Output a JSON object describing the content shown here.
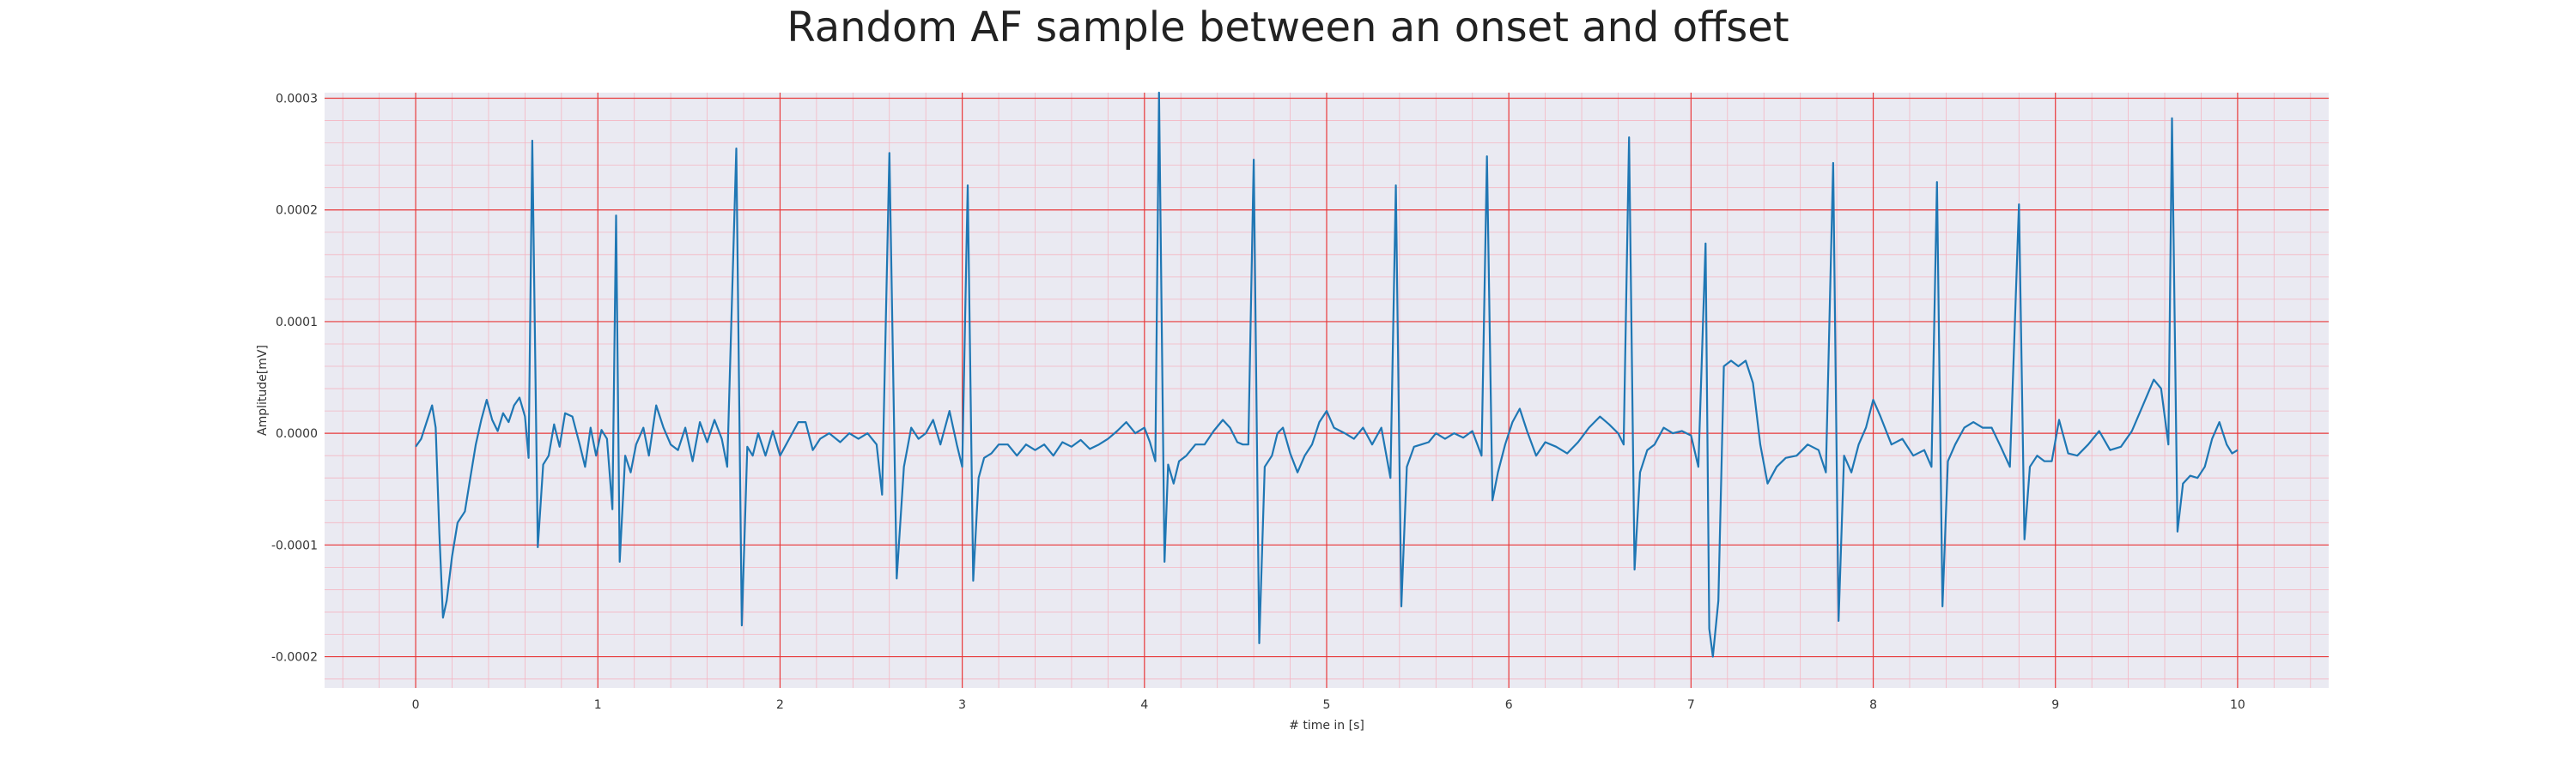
{
  "chart_data": {
    "type": "line",
    "title": "Random AF sample between an onset and offset",
    "xlabel": "# time in [s]",
    "ylabel": "Amplitude[mV]",
    "xlim": [
      -0.5,
      10.5
    ],
    "ylim": [
      -0.000228,
      0.000305
    ],
    "xticks": [
      0,
      1,
      2,
      3,
      4,
      5,
      6,
      7,
      8,
      9,
      10
    ],
    "xtick_labels": [
      "0",
      "1",
      "2",
      "3",
      "4",
      "5",
      "6",
      "7",
      "8",
      "9",
      "10"
    ],
    "yticks": [
      -0.0002,
      -0.0001,
      0.0,
      0.0001,
      0.0002,
      0.0003
    ],
    "ytick_labels": [
      "-0.0002",
      "-0.0001",
      "0.0000",
      "0.0001",
      "0.0002",
      "0.0003"
    ],
    "grid": true,
    "minor_grid": true,
    "colors": {
      "line": "#1f77b4",
      "plot_background": "#eaeaf2",
      "major_grid": "#e8393a",
      "minor_grid": "#f4b6c2"
    },
    "series": [
      {
        "points": [
          [
            0.0,
            -1.2e-05
          ],
          [
            0.03,
            -5e-06
          ],
          [
            0.06,
            1e-05
          ],
          [
            0.09,
            2.5e-05
          ],
          [
            0.11,
            5e-06
          ],
          [
            0.13,
            -9e-05
          ],
          [
            0.15,
            -0.000165
          ],
          [
            0.17,
            -0.00015
          ],
          [
            0.2,
            -0.00011
          ],
          [
            0.23,
            -8e-05
          ],
          [
            0.27,
            -7e-05
          ],
          [
            0.3,
            -4e-05
          ],
          [
            0.33,
            -1e-05
          ],
          [
            0.36,
            1.2e-05
          ],
          [
            0.39,
            3e-05
          ],
          [
            0.42,
            1.2e-05
          ],
          [
            0.45,
            2e-06
          ],
          [
            0.48,
            1.8e-05
          ],
          [
            0.51,
            1e-05
          ],
          [
            0.54,
            2.5e-05
          ],
          [
            0.57,
            3.2e-05
          ],
          [
            0.6,
            1.5e-05
          ],
          [
            0.62,
            -2.2e-05
          ],
          [
            0.64,
            0.000262
          ],
          [
            0.67,
            -0.000102
          ],
          [
            0.7,
            -2.8e-05
          ],
          [
            0.73,
            -2e-05
          ],
          [
            0.76,
            8e-06
          ],
          [
            0.79,
            -1.2e-05
          ],
          [
            0.82,
            1.8e-05
          ],
          [
            0.86,
            1.5e-05
          ],
          [
            0.9,
            -1e-05
          ],
          [
            0.93,
            -3e-05
          ],
          [
            0.96,
            5e-06
          ],
          [
            0.99,
            -2e-05
          ],
          [
            1.02,
            3e-06
          ],
          [
            1.05,
            -5e-06
          ],
          [
            1.08,
            -6.8e-05
          ],
          [
            1.1,
            0.000195
          ],
          [
            1.12,
            -0.000115
          ],
          [
            1.15,
            -2e-05
          ],
          [
            1.18,
            -3.5e-05
          ],
          [
            1.21,
            -1e-05
          ],
          [
            1.25,
            5e-06
          ],
          [
            1.28,
            -2e-05
          ],
          [
            1.32,
            2.5e-05
          ],
          [
            1.36,
            5e-06
          ],
          [
            1.4,
            -1e-05
          ],
          [
            1.44,
            -1.5e-05
          ],
          [
            1.48,
            5e-06
          ],
          [
            1.52,
            -2.5e-05
          ],
          [
            1.56,
            1e-05
          ],
          [
            1.6,
            -8e-06
          ],
          [
            1.64,
            1.2e-05
          ],
          [
            1.68,
            -5e-06
          ],
          [
            1.71,
            -3e-05
          ],
          [
            1.76,
            0.000255
          ],
          [
            1.79,
            -0.000172
          ],
          [
            1.82,
            -1.2e-05
          ],
          [
            1.85,
            -2e-05
          ],
          [
            1.88,
            0.0
          ],
          [
            1.92,
            -2e-05
          ],
          [
            1.96,
            2e-06
          ],
          [
            2.0,
            -2e-05
          ],
          [
            2.05,
            -5e-06
          ],
          [
            2.1,
            1e-05
          ],
          [
            2.14,
            1e-05
          ],
          [
            2.18,
            -1.5e-05
          ],
          [
            2.22,
            -5e-06
          ],
          [
            2.27,
            0.0
          ],
          [
            2.33,
            -8e-06
          ],
          [
            2.38,
            0.0
          ],
          [
            2.43,
            -5e-06
          ],
          [
            2.48,
            0.0
          ],
          [
            2.53,
            -1e-05
          ],
          [
            2.56,
            -5.5e-05
          ],
          [
            2.6,
            0.000251
          ],
          [
            2.64,
            -0.00013
          ],
          [
            2.68,
            -3e-05
          ],
          [
            2.72,
            5e-06
          ],
          [
            2.76,
            -5e-06
          ],
          [
            2.8,
            0.0
          ],
          [
            2.84,
            1.2e-05
          ],
          [
            2.88,
            -1e-05
          ],
          [
            2.93,
            2e-05
          ],
          [
            2.97,
            -1e-05
          ],
          [
            3.0,
            -3e-05
          ],
          [
            3.03,
            0.000222
          ],
          [
            3.06,
            -0.000132
          ],
          [
            3.09,
            -4e-05
          ],
          [
            3.12,
            -2.2e-05
          ],
          [
            3.16,
            -1.8e-05
          ],
          [
            3.2,
            -1e-05
          ],
          [
            3.25,
            -1e-05
          ],
          [
            3.3,
            -2e-05
          ],
          [
            3.35,
            -1e-05
          ],
          [
            3.4,
            -1.5e-05
          ],
          [
            3.45,
            -1e-05
          ],
          [
            3.5,
            -2e-05
          ],
          [
            3.55,
            -8e-06
          ],
          [
            3.6,
            -1.2e-05
          ],
          [
            3.65,
            -6e-06
          ],
          [
            3.7,
            -1.4e-05
          ],
          [
            3.75,
            -1e-05
          ],
          [
            3.8,
            -5e-06
          ],
          [
            3.85,
            2e-06
          ],
          [
            3.9,
            1e-05
          ],
          [
            3.95,
            0.0
          ],
          [
            4.0,
            5e-06
          ],
          [
            4.03,
            -8e-06
          ],
          [
            4.06,
            -2.5e-05
          ],
          [
            4.08,
            0.000305
          ],
          [
            4.11,
            -0.000115
          ],
          [
            4.13,
            -2.8e-05
          ],
          [
            4.16,
            -4.5e-05
          ],
          [
            4.19,
            -2.5e-05
          ],
          [
            4.23,
            -2e-05
          ],
          [
            4.28,
            -1e-05
          ],
          [
            4.33,
            -1e-05
          ],
          [
            4.38,
            2e-06
          ],
          [
            4.43,
            1.2e-05
          ],
          [
            4.47,
            5e-06
          ],
          [
            4.51,
            -8e-06
          ],
          [
            4.54,
            -1e-05
          ],
          [
            4.57,
            -1e-05
          ],
          [
            4.6,
            0.000245
          ],
          [
            4.63,
            -0.000188
          ],
          [
            4.66,
            -3e-05
          ],
          [
            4.7,
            -2e-05
          ],
          [
            4.73,
            0.0
          ],
          [
            4.76,
            5e-06
          ],
          [
            4.8,
            -1.8e-05
          ],
          [
            4.84,
            -3.5e-05
          ],
          [
            4.88,
            -2e-05
          ],
          [
            4.92,
            -1e-05
          ],
          [
            4.96,
            1e-05
          ],
          [
            5.0,
            2e-05
          ],
          [
            5.04,
            5e-06
          ],
          [
            5.1,
            0.0
          ],
          [
            5.15,
            -5e-06
          ],
          [
            5.2,
            5e-06
          ],
          [
            5.25,
            -1e-05
          ],
          [
            5.3,
            5e-06
          ],
          [
            5.35,
            -4e-05
          ],
          [
            5.38,
            0.000222
          ],
          [
            5.41,
            -0.000155
          ],
          [
            5.44,
            -3e-05
          ],
          [
            5.48,
            -1.2e-05
          ],
          [
            5.52,
            -1e-05
          ],
          [
            5.56,
            -8e-06
          ],
          [
            5.6,
            0.0
          ],
          [
            5.65,
            -5e-06
          ],
          [
            5.7,
            0.0
          ],
          [
            5.75,
            -4e-06
          ],
          [
            5.8,
            2e-06
          ],
          [
            5.85,
            -2e-05
          ],
          [
            5.88,
            0.000248
          ],
          [
            5.91,
            -6e-05
          ],
          [
            5.94,
            -3.5e-05
          ],
          [
            5.98,
            -1e-05
          ],
          [
            6.02,
            1e-05
          ],
          [
            6.06,
            2.2e-05
          ],
          [
            6.1,
            2e-06
          ],
          [
            6.15,
            -2e-05
          ],
          [
            6.2,
            -8e-06
          ],
          [
            6.26,
            -1.2e-05
          ],
          [
            6.32,
            -1.8e-05
          ],
          [
            6.38,
            -8e-06
          ],
          [
            6.44,
            5e-06
          ],
          [
            6.5,
            1.5e-05
          ],
          [
            6.55,
            8e-06
          ],
          [
            6.6,
            0.0
          ],
          [
            6.63,
            -1e-05
          ],
          [
            6.66,
            0.000265
          ],
          [
            6.69,
            -0.000122
          ],
          [
            6.72,
            -3.5e-05
          ],
          [
            6.76,
            -1.5e-05
          ],
          [
            6.8,
            -1e-05
          ],
          [
            6.85,
            5e-06
          ],
          [
            6.9,
            0.0
          ],
          [
            6.95,
            2e-06
          ],
          [
            7.0,
            -2e-06
          ],
          [
            7.04,
            -3e-05
          ],
          [
            7.08,
            0.00017
          ],
          [
            7.1,
            -0.000175
          ],
          [
            7.12,
            -0.0002
          ],
          [
            7.15,
            -0.00015
          ],
          [
            7.18,
            6e-05
          ],
          [
            7.22,
            6.5e-05
          ],
          [
            7.26,
            6e-05
          ],
          [
            7.3,
            6.5e-05
          ],
          [
            7.34,
            4.5e-05
          ],
          [
            7.38,
            -1e-05
          ],
          [
            7.42,
            -4.5e-05
          ],
          [
            7.47,
            -3e-05
          ],
          [
            7.52,
            -2.2e-05
          ],
          [
            7.58,
            -2e-05
          ],
          [
            7.64,
            -1e-05
          ],
          [
            7.7,
            -1.5e-05
          ],
          [
            7.74,
            -3.5e-05
          ],
          [
            7.78,
            0.000242
          ],
          [
            7.81,
            -0.000168
          ],
          [
            7.84,
            -2e-05
          ],
          [
            7.88,
            -3.5e-05
          ],
          [
            7.92,
            -1e-05
          ],
          [
            7.96,
            5e-06
          ],
          [
            8.0,
            3e-05
          ],
          [
            8.04,
            1.5e-05
          ],
          [
            8.1,
            -1e-05
          ],
          [
            8.16,
            -5e-06
          ],
          [
            8.22,
            -2e-05
          ],
          [
            8.28,
            -1.5e-05
          ],
          [
            8.32,
            -3e-05
          ],
          [
            8.35,
            0.000225
          ],
          [
            8.38,
            -0.000155
          ],
          [
            8.41,
            -2.5e-05
          ],
          [
            8.45,
            -1e-05
          ],
          [
            8.5,
            5e-06
          ],
          [
            8.55,
            1e-05
          ],
          [
            8.6,
            5e-06
          ],
          [
            8.65,
            5e-06
          ],
          [
            8.7,
            -1.2e-05
          ],
          [
            8.75,
            -3e-05
          ],
          [
            8.8,
            0.000205
          ],
          [
            8.83,
            -9.5e-05
          ],
          [
            8.86,
            -3e-05
          ],
          [
            8.9,
            -2e-05
          ],
          [
            8.94,
            -2.5e-05
          ],
          [
            8.98,
            -2.5e-05
          ],
          [
            9.02,
            1.2e-05
          ],
          [
            9.07,
            -1.8e-05
          ],
          [
            9.12,
            -2e-05
          ],
          [
            9.18,
            -1e-05
          ],
          [
            9.24,
            2e-06
          ],
          [
            9.3,
            -1.5e-05
          ],
          [
            9.36,
            -1.2e-05
          ],
          [
            9.42,
            2e-06
          ],
          [
            9.48,
            2.5e-05
          ],
          [
            9.54,
            4.8e-05
          ],
          [
            9.58,
            4e-05
          ],
          [
            9.62,
            -1e-05
          ],
          [
            9.64,
            0.000282
          ],
          [
            9.67,
            -8.8e-05
          ],
          [
            9.7,
            -4.5e-05
          ],
          [
            9.74,
            -3.8e-05
          ],
          [
            9.78,
            -4e-05
          ],
          [
            9.82,
            -3e-05
          ],
          [
            9.86,
            -5e-06
          ],
          [
            9.9,
            1e-05
          ],
          [
            9.94,
            -1e-05
          ],
          [
            9.97,
            -1.8e-05
          ],
          [
            10.0,
            -1.5e-05
          ]
        ]
      }
    ]
  }
}
